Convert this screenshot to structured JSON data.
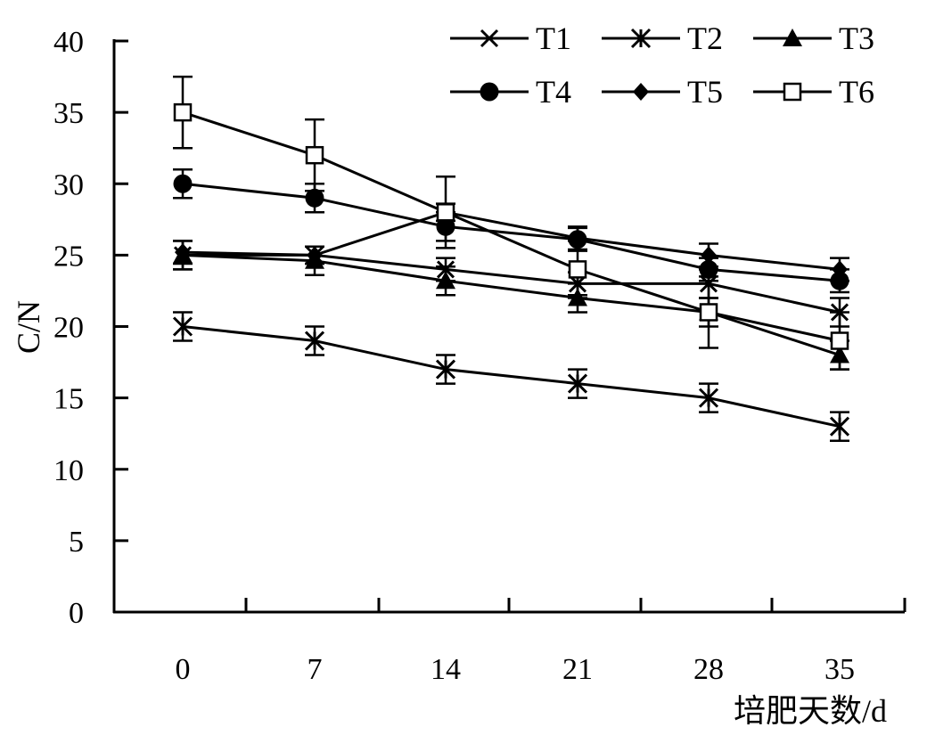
{
  "chart_data": {
    "type": "line",
    "x": [
      0,
      7,
      14,
      21,
      28,
      35
    ],
    "xlabel": "培肥天数/d",
    "ylabel": "C/N",
    "ylim": [
      0,
      40
    ],
    "yticks": [
      0,
      5,
      10,
      15,
      20,
      25,
      30,
      35,
      40
    ],
    "xtick_labels": [
      "0",
      "7",
      "14",
      "21",
      "28",
      "35"
    ],
    "grid": false,
    "legend_position": "top-right",
    "series": [
      {
        "name": "T1",
        "marker": "x",
        "values": [
          25.0,
          25.0,
          24.0,
          23.0,
          23.0,
          21.0
        ],
        "errors": [
          1.0,
          0.6,
          0.8,
          0.8,
          1.0,
          1.0
        ]
      },
      {
        "name": "T2",
        "marker": "asterisk",
        "values": [
          20.0,
          19.0,
          17.0,
          16.0,
          15.0,
          13.0
        ],
        "errors": [
          1.0,
          1.0,
          1.0,
          1.0,
          1.0,
          1.0
        ]
      },
      {
        "name": "T3",
        "marker": "triangle",
        "values": [
          25.0,
          24.6,
          23.2,
          22.0,
          21.0,
          18.0
        ],
        "errors": [
          1.0,
          1.0,
          1.0,
          1.0,
          1.0,
          1.0
        ]
      },
      {
        "name": "T4",
        "marker": "circle",
        "values": [
          30.0,
          29.0,
          27.0,
          26.1,
          24.0,
          23.2
        ],
        "errors": [
          1.0,
          1.0,
          1.0,
          0.8,
          0.8,
          0.8
        ]
      },
      {
        "name": "T5",
        "marker": "diamond",
        "values": [
          25.2,
          25.0,
          28.0,
          26.2,
          25.0,
          24.0
        ],
        "errors": [
          0.8,
          0.6,
          0.6,
          0.8,
          0.8,
          0.8
        ]
      },
      {
        "name": "T6",
        "marker": "square",
        "values": [
          35.0,
          32.0,
          28.0,
          24.0,
          21.0,
          19.0
        ],
        "errors": [
          2.5,
          2.5,
          2.5,
          2.0,
          2.5,
          2.0
        ]
      }
    ]
  }
}
